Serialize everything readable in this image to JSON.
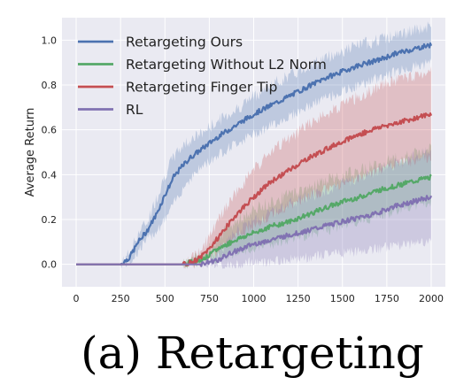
{
  "caption": "(a) Retargeting",
  "chart_data": {
    "type": "line",
    "title": "",
    "xlabel": "",
    "ylabel": "Average Return",
    "xlim": [
      -80,
      2080
    ],
    "ylim": [
      -0.1,
      1.1
    ],
    "xticks": [
      0,
      250,
      500,
      750,
      1000,
      1250,
      1500,
      1750,
      2000
    ],
    "yticks": [
      0.0,
      0.2,
      0.4,
      0.6,
      0.8,
      1.0
    ],
    "grid": true,
    "background": "#eaeaf2",
    "legend": "top-left",
    "series": [
      {
        "name": "Retargeting Ours",
        "color": "#4c72b0",
        "x": [
          0,
          250,
          300,
          350,
          400,
          450,
          500,
          550,
          600,
          650,
          700,
          750,
          800,
          900,
          1000,
          1100,
          1200,
          1300,
          1400,
          1500,
          1600,
          1700,
          1800,
          1900,
          2000
        ],
        "y": [
          0.0,
          0.0,
          0.03,
          0.1,
          0.15,
          0.22,
          0.31,
          0.39,
          0.44,
          0.48,
          0.51,
          0.54,
          0.57,
          0.62,
          0.67,
          0.71,
          0.75,
          0.79,
          0.83,
          0.86,
          0.89,
          0.91,
          0.94,
          0.96,
          0.98
        ],
        "lower": [
          0.0,
          0.0,
          0.01,
          0.06,
          0.11,
          0.15,
          0.2,
          0.27,
          0.34,
          0.39,
          0.43,
          0.46,
          0.49,
          0.54,
          0.58,
          0.62,
          0.66,
          0.7,
          0.74,
          0.77,
          0.8,
          0.83,
          0.86,
          0.88,
          0.9
        ],
        "upper": [
          0.0,
          0.0,
          0.05,
          0.14,
          0.19,
          0.29,
          0.4,
          0.48,
          0.53,
          0.56,
          0.58,
          0.61,
          0.64,
          0.69,
          0.75,
          0.8,
          0.84,
          0.88,
          0.92,
          0.95,
          0.98,
          1.0,
          1.02,
          1.04,
          1.06
        ]
      },
      {
        "name": "Retargeting Without L2 Norm",
        "color": "#55a868",
        "x": [
          0,
          600,
          650,
          700,
          750,
          800,
          850,
          900,
          1000,
          1100,
          1200,
          1300,
          1400,
          1500,
          1600,
          1700,
          1800,
          1900,
          2000
        ],
        "y": [
          0.0,
          0.0,
          0.01,
          0.02,
          0.04,
          0.07,
          0.09,
          0.11,
          0.14,
          0.17,
          0.19,
          0.22,
          0.25,
          0.28,
          0.3,
          0.33,
          0.35,
          0.37,
          0.39
        ],
        "lower": [
          0.0,
          0.0,
          0.0,
          0.01,
          0.02,
          0.03,
          0.04,
          0.05,
          0.07,
          0.09,
          0.11,
          0.13,
          0.15,
          0.17,
          0.19,
          0.21,
          0.24,
          0.26,
          0.28
        ],
        "upper": [
          0.0,
          0.0,
          0.02,
          0.04,
          0.07,
          0.12,
          0.16,
          0.19,
          0.24,
          0.28,
          0.31,
          0.34,
          0.37,
          0.4,
          0.42,
          0.45,
          0.47,
          0.49,
          0.51
        ]
      },
      {
        "name": "Retargeting Finger Tip",
        "color": "#c44e52",
        "x": [
          0,
          600,
          650,
          700,
          750,
          800,
          850,
          900,
          1000,
          1100,
          1200,
          1300,
          1400,
          1500,
          1600,
          1700,
          1800,
          1900,
          2000
        ],
        "y": [
          0.0,
          0.0,
          0.01,
          0.03,
          0.07,
          0.12,
          0.17,
          0.22,
          0.3,
          0.37,
          0.42,
          0.47,
          0.51,
          0.55,
          0.58,
          0.61,
          0.63,
          0.65,
          0.67
        ],
        "lower": [
          0.0,
          0.0,
          0.0,
          0.01,
          0.03,
          0.06,
          0.09,
          0.12,
          0.17,
          0.22,
          0.26,
          0.3,
          0.33,
          0.36,
          0.39,
          0.42,
          0.44,
          0.46,
          0.48
        ],
        "upper": [
          0.0,
          0.0,
          0.02,
          0.06,
          0.12,
          0.19,
          0.26,
          0.32,
          0.42,
          0.5,
          0.56,
          0.62,
          0.67,
          0.71,
          0.75,
          0.79,
          0.82,
          0.84,
          0.86
        ]
      },
      {
        "name": "RL",
        "color": "#8172b2",
        "x": [
          0,
          700,
          750,
          800,
          850,
          900,
          1000,
          1100,
          1200,
          1300,
          1400,
          1500,
          1600,
          1700,
          1800,
          1900,
          2000
        ],
        "y": [
          0.0,
          0.0,
          0.01,
          0.02,
          0.04,
          0.06,
          0.09,
          0.11,
          0.13,
          0.15,
          0.17,
          0.19,
          0.21,
          0.23,
          0.26,
          0.28,
          0.3
        ],
        "lower": [
          0.0,
          0.0,
          0.0,
          0.0,
          0.0,
          0.0,
          0.01,
          0.01,
          0.02,
          0.03,
          0.04,
          0.05,
          0.06,
          0.07,
          0.08,
          0.09,
          0.1
        ],
        "upper": [
          0.0,
          0.0,
          0.03,
          0.06,
          0.1,
          0.14,
          0.19,
          0.23,
          0.27,
          0.3,
          0.33,
          0.36,
          0.39,
          0.42,
          0.45,
          0.48,
          0.5
        ]
      }
    ]
  }
}
